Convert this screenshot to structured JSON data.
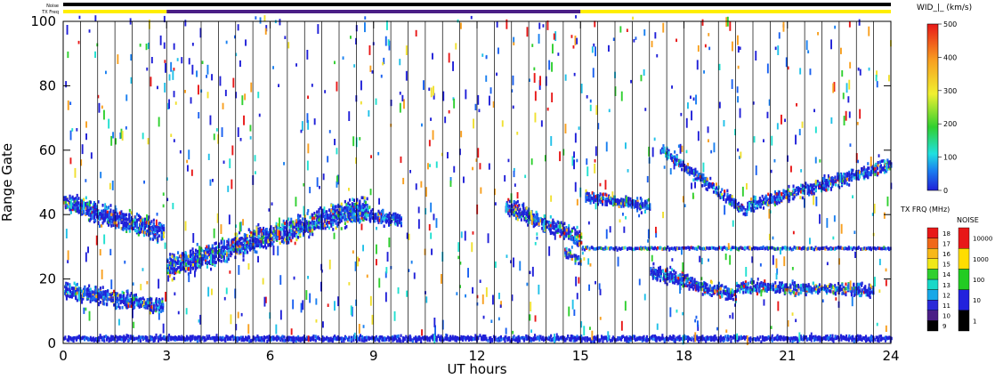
{
  "chart_data": {
    "type": "heatmap",
    "xlabel": "UT hours",
    "ylabel": "Range Gate",
    "xlim": [
      0,
      24
    ],
    "ylim": [
      0,
      100
    ],
    "x_ticks": [
      "0",
      "3",
      "6",
      "9",
      "12",
      "15",
      "18",
      "21",
      "24"
    ],
    "y_ticks": [
      "0",
      "20",
      "40",
      "60",
      "80",
      "100"
    ],
    "grid": "vertical lines every 0.5 h",
    "top_bars": {
      "noise_label": "Noise",
      "txfreq_label": "TX Freq",
      "noise_color": "#000000",
      "txfreq_segments": [
        {
          "start": 0,
          "end": 3,
          "color": "#ffee00"
        },
        {
          "start": 3,
          "end": 15,
          "color": "#4a1e86"
        },
        {
          "start": 15,
          "end": 24,
          "color": "#ffee00"
        }
      ]
    },
    "colorbar_width": {
      "title": "WID_|_ (km/s)",
      "ticks": [
        "0",
        "100",
        "200",
        "300",
        "400",
        "500"
      ],
      "range": [
        0,
        500
      ]
    },
    "colorbar_txfreq": {
      "title": "TX FRQ (MHz)",
      "levels": [
        "9",
        "10",
        "11",
        "12",
        "13",
        "14",
        "15",
        "16",
        "17",
        "18"
      ],
      "colors": [
        "#000000",
        "#4a1e86",
        "#2a2ad8",
        "#18a8e8",
        "#18d8c8",
        "#30d030",
        "#f0e818",
        "#f8b818",
        "#f06818",
        "#e81818"
      ]
    },
    "colorbar_noise": {
      "title": "NOISE",
      "levels": [
        "1",
        "10",
        "100",
        "1000",
        "10000"
      ],
      "colors": [
        "#000000",
        "#2222dd",
        "#22cc22",
        "#ffdd00",
        "#e81818"
      ]
    },
    "scatter_bands": [
      {
        "t0": 0.0,
        "t1": 2.9,
        "g0": 43,
        "g1": 34,
        "w": 4.5
      },
      {
        "t0": 0.0,
        "t1": 2.9,
        "g0": 16,
        "g1": 11,
        "w": 3.5
      },
      {
        "t0": 3.0,
        "t1": 8.8,
        "g0": 23,
        "g1": 42,
        "w": 5
      },
      {
        "t0": 8.2,
        "t1": 9.8,
        "g0": 40,
        "g1": 38,
        "w": 3
      },
      {
        "t0": 0.0,
        "t1": 24.0,
        "g0": 1,
        "g1": 1,
        "w": 1.2
      },
      {
        "t0": 12.8,
        "t1": 15.0,
        "g0": 42,
        "g1": 32,
        "w": 3.5
      },
      {
        "t0": 14.5,
        "t1": 15.0,
        "g0": 28,
        "g1": 25,
        "w": 2
      },
      {
        "t0": 15.1,
        "t1": 17.0,
        "g0": 45,
        "g1": 42,
        "w": 2.5
      },
      {
        "t0": 17.3,
        "t1": 19.8,
        "g0": 60,
        "g1": 40,
        "w": 2.5
      },
      {
        "t0": 19.8,
        "t1": 24.0,
        "g0": 42,
        "g1": 55,
        "w": 3
      },
      {
        "t0": 17.0,
        "t1": 19.5,
        "g0": 22,
        "g1": 14,
        "w": 3
      },
      {
        "t0": 19.5,
        "t1": 23.5,
        "g0": 17,
        "g1": 16,
        "w": 2.5
      },
      {
        "t0": 15.0,
        "t1": 24.0,
        "g0": 29,
        "g1": 29,
        "w": 0.6
      }
    ]
  }
}
